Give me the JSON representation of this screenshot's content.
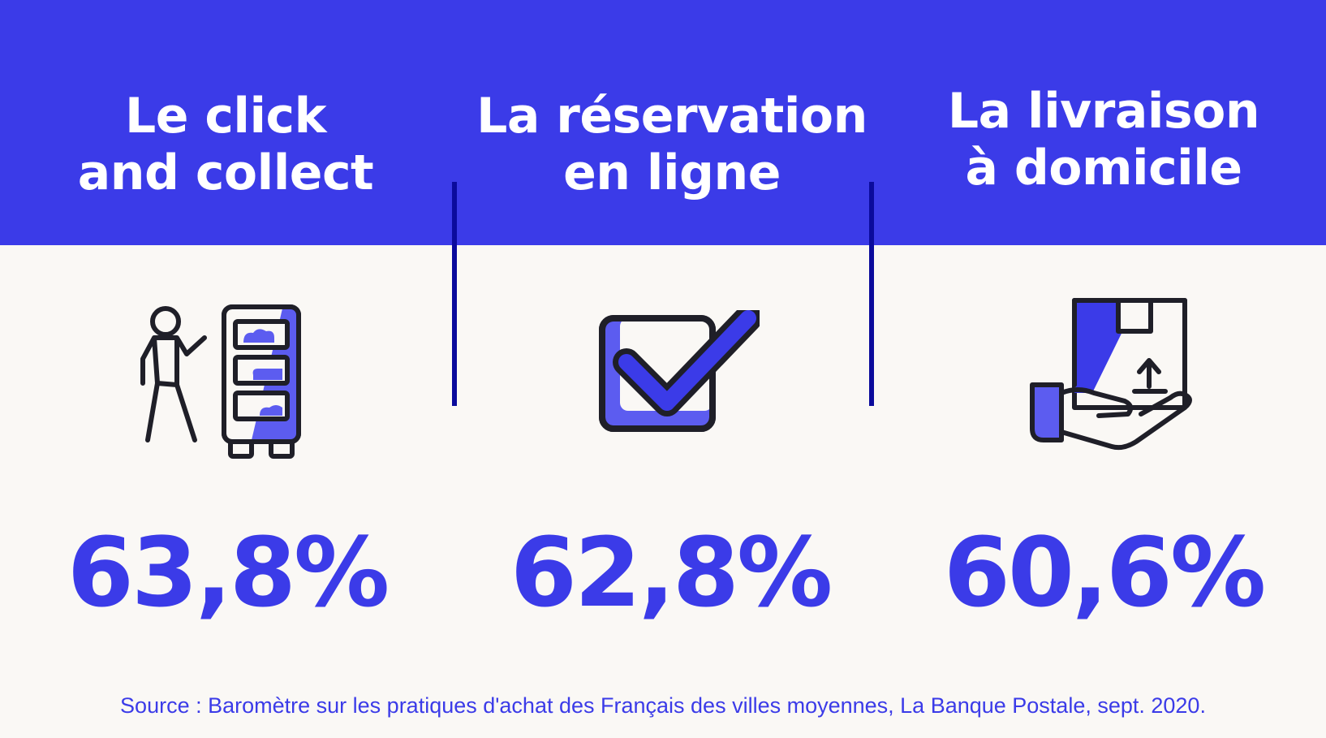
{
  "columns": [
    {
      "title_line1": "Le click",
      "title_line2": "and collect",
      "icon": "person-locker-icon",
      "percentage": "63,8%",
      "value": 63.8
    },
    {
      "title_line1": "La réservation",
      "title_line2": "en ligne",
      "icon": "checkbox-checked-icon",
      "percentage": "62,8%",
      "value": 62.8
    },
    {
      "title_line1": "La livraison",
      "title_line2": "à domicile",
      "icon": "hand-package-icon",
      "percentage": "60,6%",
      "value": 60.6
    }
  ],
  "source": "Source : Baromètre sur les pratiques d'achat des Français des villes moyennes, La Banque Postale, sept. 2020.",
  "colors": {
    "accent": "#3b3be8",
    "header_bg": "#3b3be8",
    "divider": "#0b0b9c",
    "page_bg": "#faf8f5",
    "icon_stroke": "#1f1f28",
    "icon_fill": "#5c5cf0"
  }
}
